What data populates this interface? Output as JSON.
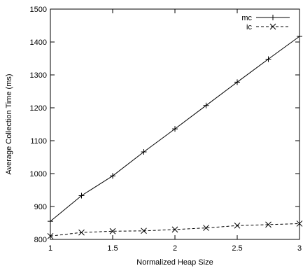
{
  "chart_data": {
    "type": "line",
    "title": "",
    "xlabel": "Normalized Heap Size",
    "ylabel": "Average Collection Time (ms)",
    "x": [
      1,
      1.25,
      1.5,
      1.75,
      2,
      2.25,
      2.5,
      2.75,
      3
    ],
    "xlim": [
      1,
      3
    ],
    "ylim": [
      800,
      1500
    ],
    "xticks": [
      1,
      1.5,
      2,
      2.5,
      3
    ],
    "xtick_labels": [
      "1",
      "1.5",
      "2",
      "2.5",
      "3"
    ],
    "yticks": [
      800,
      900,
      1000,
      1100,
      1200,
      1300,
      1400,
      1500
    ],
    "ytick_labels": [
      "800",
      "900",
      "1000",
      "1100",
      "1200",
      "1300",
      "1400",
      "1500"
    ],
    "grid": false,
    "legend_position": "top-right",
    "series": [
      {
        "name": "mc",
        "marker": "plus",
        "line_style": "solid",
        "color": "#000000",
        "values": [
          855,
          933,
          993,
          1066,
          1136,
          1207,
          1278,
          1348,
          1417
        ]
      },
      {
        "name": "ic",
        "marker": "cross",
        "line_style": "dashed",
        "color": "#000000",
        "values": [
          810,
          821,
          825,
          826,
          830,
          835,
          842,
          845,
          848
        ]
      }
    ]
  }
}
